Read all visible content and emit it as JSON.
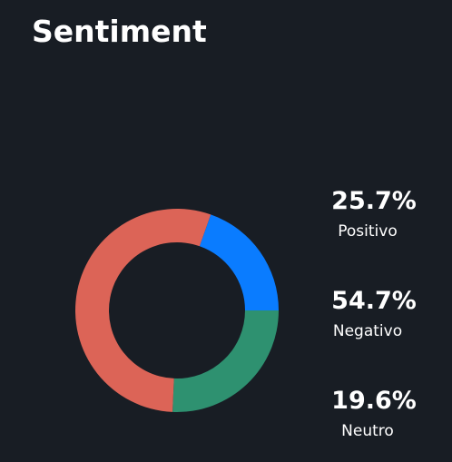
{
  "chart_data": {
    "type": "donut",
    "title": "Sentiment",
    "categories": [
      "Positivo",
      "Negativo",
      "Neutro"
    ],
    "values": [
      25.7,
      54.7,
      19.6
    ],
    "value_labels": [
      "25.7%",
      "54.7%",
      "19.6%"
    ],
    "colors": [
      "#2e9170",
      "#dc6457",
      "#0a7cff"
    ]
  }
}
